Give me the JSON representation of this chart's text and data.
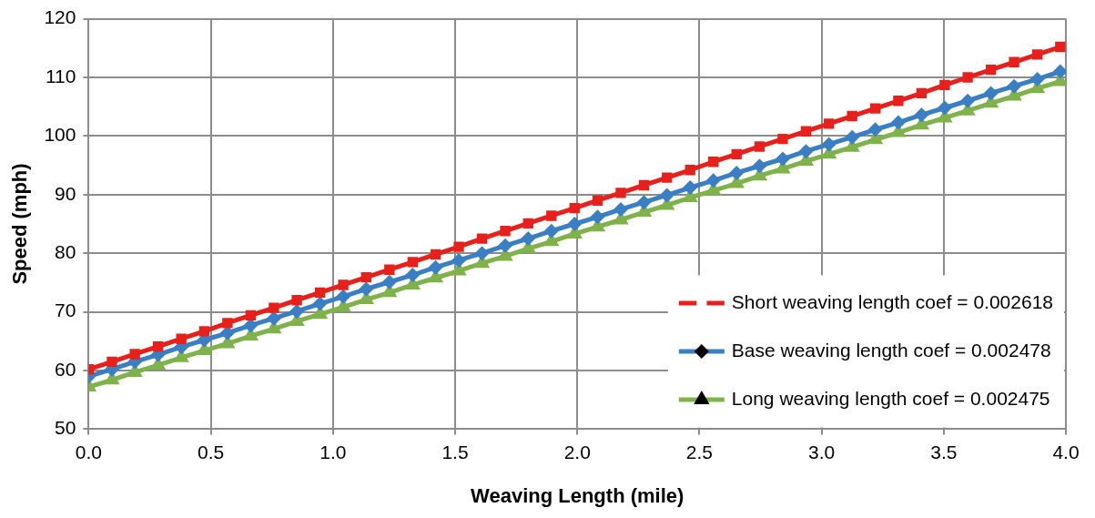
{
  "chart_data": {
    "type": "line",
    "xlabel": "Weaving Length (mile)",
    "ylabel": "Speed (mph)",
    "x": [
      0,
      0.095,
      0.189,
      0.284,
      0.379,
      0.473,
      0.568,
      0.663,
      0.758,
      0.852,
      0.947,
      1.042,
      1.136,
      1.231,
      1.326,
      1.42,
      1.515,
      1.61,
      1.705,
      1.799,
      1.894,
      1.989,
      2.083,
      2.178,
      2.273,
      2.367,
      2.462,
      2.557,
      2.652,
      2.746,
      2.841,
      2.936,
      3.03,
      3.125,
      3.22,
      3.314,
      3.409,
      3.504,
      3.598,
      3.693,
      3.788,
      3.883,
      3.977
    ],
    "series": [
      {
        "name": "Short weaving length coef = 0.002618",
        "color": "#e8201c",
        "marker": "square",
        "values": [
          60.2,
          61.5,
          62.8,
          64.1,
          65.4,
          66.7,
          68.1,
          69.4,
          70.7,
          72.0,
          73.3,
          74.6,
          75.9,
          77.2,
          78.5,
          79.8,
          81.1,
          82.5,
          83.8,
          85.1,
          86.4,
          87.7,
          89.0,
          90.3,
          91.6,
          92.9,
          94.2,
          95.6,
          96.9,
          98.2,
          99.5,
          100.8,
          102.1,
          103.4,
          104.7,
          106.0,
          107.3,
          108.7,
          110.0,
          111.3,
          112.6,
          113.9,
          115.2
        ]
      },
      {
        "name": "Base weaving length coef = 0.002478",
        "color": "#3a7ec4",
        "marker": "diamond",
        "values": [
          59.0,
          60.2,
          61.5,
          62.7,
          64.0,
          65.2,
          66.4,
          67.7,
          68.9,
          70.1,
          71.4,
          72.6,
          73.9,
          75.1,
          76.3,
          77.6,
          78.8,
          80.0,
          81.3,
          82.5,
          83.8,
          85.0,
          86.2,
          87.5,
          88.7,
          89.9,
          91.2,
          92.4,
          93.7,
          94.9,
          96.1,
          97.4,
          98.6,
          99.8,
          101.1,
          102.3,
          103.6,
          104.8,
          106.0,
          107.3,
          108.5,
          109.7,
          111.0
        ]
      },
      {
        "name": "Long weaving length coef = 0.002475",
        "color": "#7fb24a",
        "marker": "triangle",
        "values": [
          57.2,
          58.4,
          59.7,
          60.9,
          62.2,
          63.4,
          64.6,
          65.9,
          67.1,
          68.4,
          69.6,
          70.8,
          72.1,
          73.3,
          74.6,
          75.8,
          77.0,
          78.3,
          79.5,
          80.8,
          82.0,
          83.3,
          84.5,
          85.7,
          87.0,
          88.2,
          89.5,
          90.7,
          91.9,
          93.2,
          94.4,
          95.7,
          96.9,
          98.1,
          99.4,
          100.6,
          101.9,
          103.1,
          104.3,
          105.6,
          106.8,
          108.1,
          109.3
        ]
      }
    ],
    "xlim": [
      0,
      4
    ],
    "xticks": [
      {
        "value": 0,
        "label": "0.0"
      },
      0.5,
      {
        "value": 1,
        "label": "1.0"
      },
      1.5,
      {
        "value": 2,
        "label": "2.0"
      },
      2.5,
      {
        "value": 3,
        "label": "3.0"
      },
      3.5,
      {
        "value": 4,
        "label": "4.0"
      }
    ],
    "ylim": [
      50,
      120
    ],
    "yticks": [
      50,
      60,
      70,
      80,
      90,
      100,
      110,
      120
    ],
    "grid": true,
    "legend": "bottom right"
  }
}
